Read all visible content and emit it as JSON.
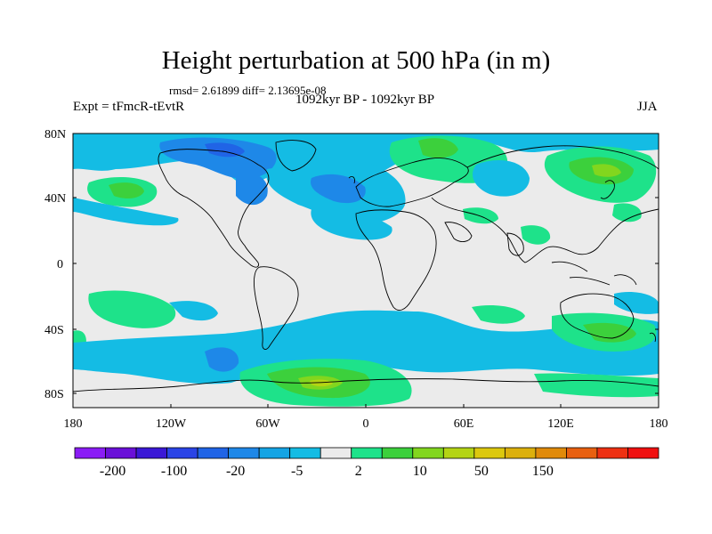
{
  "title": "Height perturbation at 500 hPa (in m)",
  "stats": "rmsd= 2.61899 diff= 2.13695e-08",
  "experiment": "Expt = tFmcR-tEvtR",
  "period": "1092kyr BP - 1092kyr BP",
  "season": "JJA",
  "lat_ticks": [
    "80N",
    "40N",
    "0",
    "40S",
    "80S"
  ],
  "lon_ticks": [
    "180",
    "120W",
    "60W",
    "0",
    "60E",
    "120E",
    "180"
  ],
  "colorbar": {
    "colors": [
      "#8a1cf5",
      "#6a10d8",
      "#3a18d6",
      "#2a44e6",
      "#2064e6",
      "#1e88e8",
      "#14a4e4",
      "#14bce4",
      "#ebebeb",
      "#1ee28a",
      "#3cd03c",
      "#82d61e",
      "#b4d414",
      "#dcc80e",
      "#dcb00c",
      "#e08a0a",
      "#e86010",
      "#ee3012",
      "#f01010"
    ],
    "labels": [
      "-200",
      "-100",
      "-20",
      "-5",
      "2",
      "10",
      "50",
      "150"
    ]
  }
}
